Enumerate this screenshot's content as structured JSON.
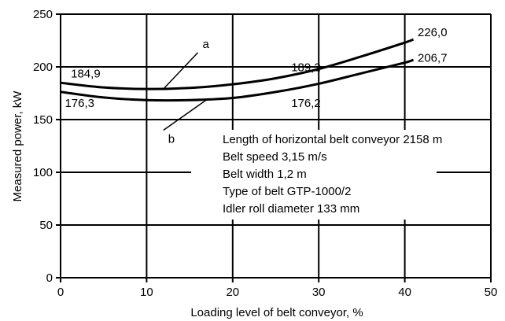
{
  "chart_data": {
    "type": "line",
    "xlabel": "Loading level of belt conveyor, %",
    "ylabel": "Measured power, kW",
    "xlim": [
      0,
      50
    ],
    "ylim": [
      0,
      250
    ],
    "x_ticks": [
      0,
      10,
      20,
      30,
      40,
      50
    ],
    "y_ticks": [
      0,
      50,
      100,
      150,
      200,
      250
    ],
    "x_tick_labels": [
      "0",
      "10",
      "20",
      "30",
      "40",
      "50"
    ],
    "y_tick_labels": [
      "0",
      "50",
      "100",
      "150",
      "200",
      "250"
    ],
    "grid": true,
    "series": [
      {
        "name": "a",
        "x": [
          0,
          5,
          10,
          15,
          20,
          25,
          30,
          35,
          40,
          41
        ],
        "y": [
          184.9,
          180.5,
          179,
          180,
          183.5,
          189.2,
          198,
          210,
          223,
          226.0
        ]
      },
      {
        "name": "b",
        "x": [
          0,
          5,
          10,
          15,
          20,
          25,
          30,
          35,
          40,
          41
        ],
        "y": [
          176.3,
          171,
          168.5,
          168.5,
          170.5,
          176.2,
          184,
          194,
          204,
          206.7
        ]
      }
    ],
    "annotations": [
      {
        "text": "184,9",
        "x": 1.2,
        "y": 190
      },
      {
        "text": "176,3",
        "x": 0.5,
        "y": 162
      },
      {
        "text": "189,2",
        "x": 26.8,
        "y": 196
      },
      {
        "text": "176,2",
        "x": 26.8,
        "y": 162
      },
      {
        "text": "226,0",
        "x": 41.5,
        "y": 229
      },
      {
        "text": "206,7",
        "x": 41.5,
        "y": 205
      }
    ],
    "series_labels": [
      {
        "text": "a",
        "label_x": 16.5,
        "label_y": 218,
        "target_x": 12,
        "target_y": 179.5
      },
      {
        "text": "b",
        "label_x": 12.5,
        "label_y": 128,
        "target_x": 17,
        "target_y": 169
      }
    ],
    "info_box": [
      "Length of horizontal belt conveyor 2158 m",
      "Belt speed 3,15 m/s",
      "Belt width 1,2 m",
      "Type of belt GTP-1000/2",
      "Idler roll diameter 133 mm"
    ]
  }
}
